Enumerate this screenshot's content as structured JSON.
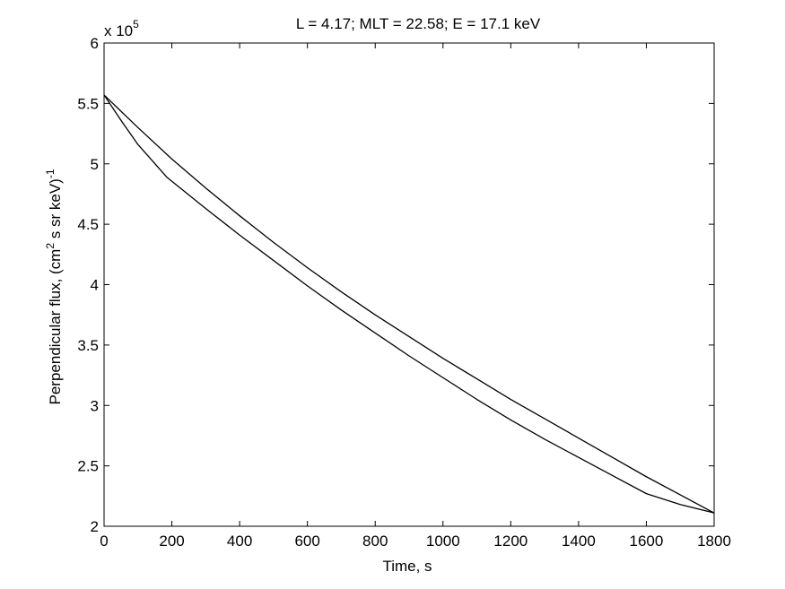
{
  "chart_data": {
    "type": "line",
    "title": "L = 4.17; MLT = 22.58; E = 17.1 keV",
    "xlabel": "Time, s",
    "ylabel_main": "Perpendicular flux, (cm",
    "ylabel_sup1": "2",
    "ylabel_mid": " s sr keV)",
    "ylabel_sup2": "-1",
    "y_multiplier": {
      "base": "x 10",
      "exponent": "5"
    },
    "xlim": [
      0,
      1800
    ],
    "ylim": [
      2,
      6
    ],
    "x_ticks": [
      "0",
      "200",
      "400",
      "600",
      "800",
      "1000",
      "1200",
      "1400",
      "1600",
      "1800"
    ],
    "y_ticks": [
      "2",
      "2.5",
      "3",
      "3.5",
      "4",
      "4.5",
      "5",
      "5.5",
      "6"
    ],
    "grid": false,
    "series": [
      {
        "color": "#000000",
        "x": [
          0,
          100,
          200,
          300,
          400,
          500,
          600,
          700,
          800,
          900,
          1000,
          1100,
          1200,
          1300,
          1400,
          1500,
          1600,
          1700,
          1800
        ],
        "y": [
          5.57,
          5.3,
          5.04,
          4.8,
          4.57,
          4.35,
          4.14,
          3.94,
          3.75,
          3.57,
          3.39,
          3.22,
          3.05,
          2.89,
          2.73,
          2.57,
          2.41,
          2.26,
          2.11
        ]
      },
      {
        "color": "#000000",
        "x": [
          0,
          50,
          100,
          185,
          300,
          400,
          500,
          600,
          700,
          800,
          900,
          1000,
          1100,
          1200,
          1300,
          1400,
          1500,
          1600,
          1700,
          1800
        ],
        "y": [
          5.57,
          5.36,
          5.16,
          4.89,
          4.63,
          4.41,
          4.2,
          3.99,
          3.79,
          3.6,
          3.41,
          3.23,
          3.05,
          2.88,
          2.72,
          2.57,
          2.42,
          2.27,
          2.18,
          2.11
        ]
      }
    ]
  }
}
